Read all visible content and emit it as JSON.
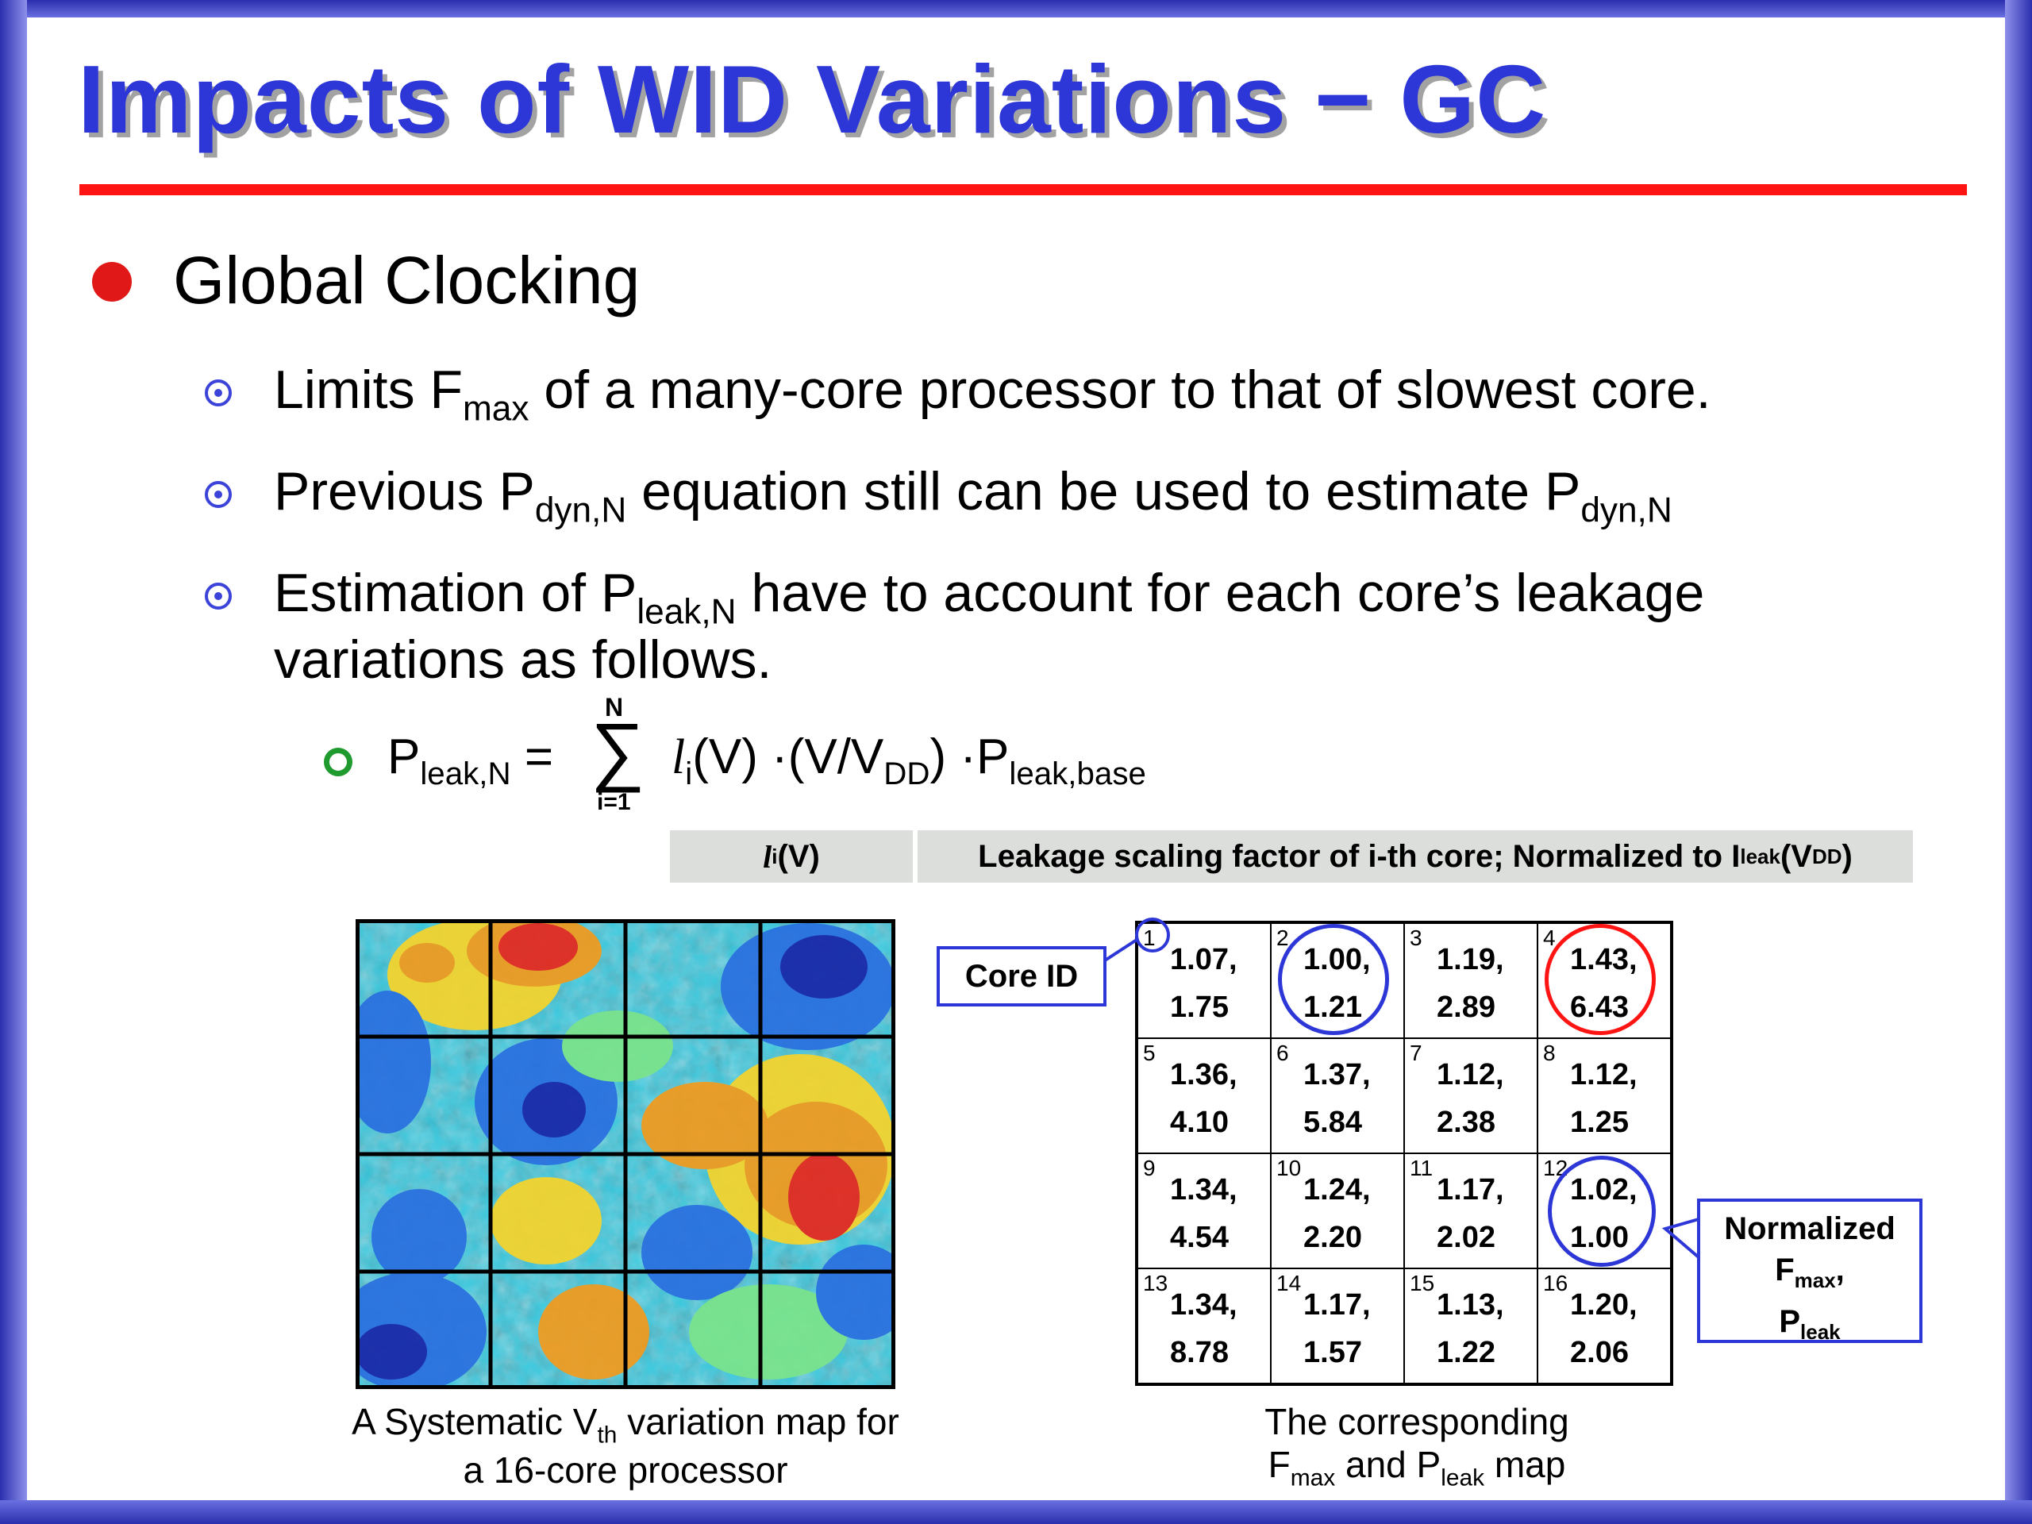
{
  "slide": {
    "title": "Impacts of WID Variations − GC",
    "bullet_l1": "Global Clocking",
    "bullets_l2": [
      {
        "pre": "Limits F",
        "sub1": "max",
        "post": " of a many-core processor to that of slowest core."
      },
      {
        "pre": "Previous P",
        "sub1": "dyn,N",
        "mid": " equation still can be used to estimate P",
        "sub2": "dyn,N"
      },
      {
        "pre": "Estimation of P",
        "sub1": "leak,N",
        "mid": " have to account for each core’s leakage",
        "line2": "variations as follows."
      }
    ],
    "equation": {
      "lhs": "P",
      "lhs_sub": "leak,N",
      "eq": " = ",
      "sum_upper": "N",
      "sum_lower": "i=1",
      "sigma": "∑",
      "l": "l",
      "l_sub": "i",
      "v": "(V) ·(V/V",
      "vdd_sub": "DD",
      "rest": ") ·P",
      "base_sub": "leak,base"
    },
    "definition": {
      "symbol_l": "l",
      "symbol_sub": "i",
      "symbol_v": "(V)",
      "text": "Leakage scaling factor of i-th core; Normalized to I",
      "text_sub": "leak",
      "text_v": "(V",
      "text_vdd": "DD",
      "text_end": ")"
    },
    "left_caption": {
      "line1_pre": "A Systematic V",
      "line1_sub": "th",
      "line1_post": " variation map for",
      "line2": "a 16-core processor"
    },
    "right_caption": {
      "line1": "The corresponding",
      "line2_a": "F",
      "line2_sub1": "max",
      "line2_b": " and P",
      "line2_sub2": "leak",
      "line2_c": " map"
    },
    "callout_core": "Core ID",
    "callout_norm": {
      "line1": "Normalized",
      "line2_a": "F",
      "line2_sub": "max",
      "line2_b": ",",
      "line3_a": "P",
      "line3_sub": "leak"
    },
    "cores": [
      {
        "id": "1",
        "f": "1.07,",
        "p": "1.75"
      },
      {
        "id": "2",
        "f": "1.00,",
        "p": "1.21"
      },
      {
        "id": "3",
        "f": "1.19,",
        "p": "2.89"
      },
      {
        "id": "4",
        "f": "1.43,",
        "p": "6.43"
      },
      {
        "id": "5",
        "f": "1.36,",
        "p": "4.10"
      },
      {
        "id": "6",
        "f": "1.37,",
        "p": "5.84"
      },
      {
        "id": "7",
        "f": "1.12,",
        "p": "2.38"
      },
      {
        "id": "8",
        "f": "1.12,",
        "p": "1.25"
      },
      {
        "id": "9",
        "f": "1.34,",
        "p": "4.54"
      },
      {
        "id": "10",
        "f": "1.24,",
        "p": "2.20"
      },
      {
        "id": "11",
        "f": "1.17,",
        "p": "2.02"
      },
      {
        "id": "12",
        "f": "1.02,",
        "p": "1.00"
      },
      {
        "id": "13",
        "f": "1.34,",
        "p": "8.78"
      },
      {
        "id": "14",
        "f": "1.17,",
        "p": "1.57"
      },
      {
        "id": "15",
        "f": "1.13,",
        "p": "1.22"
      },
      {
        "id": "16",
        "f": "1.20,",
        "p": "2.06"
      }
    ],
    "colors": {
      "title": "#2d36d6",
      "rule": "#ff1414",
      "bullet_red": "#e11818",
      "blue_circle": "#2d36d6",
      "red_circle": "#ff1414",
      "green_bullet": "#1f9a2e"
    }
  }
}
